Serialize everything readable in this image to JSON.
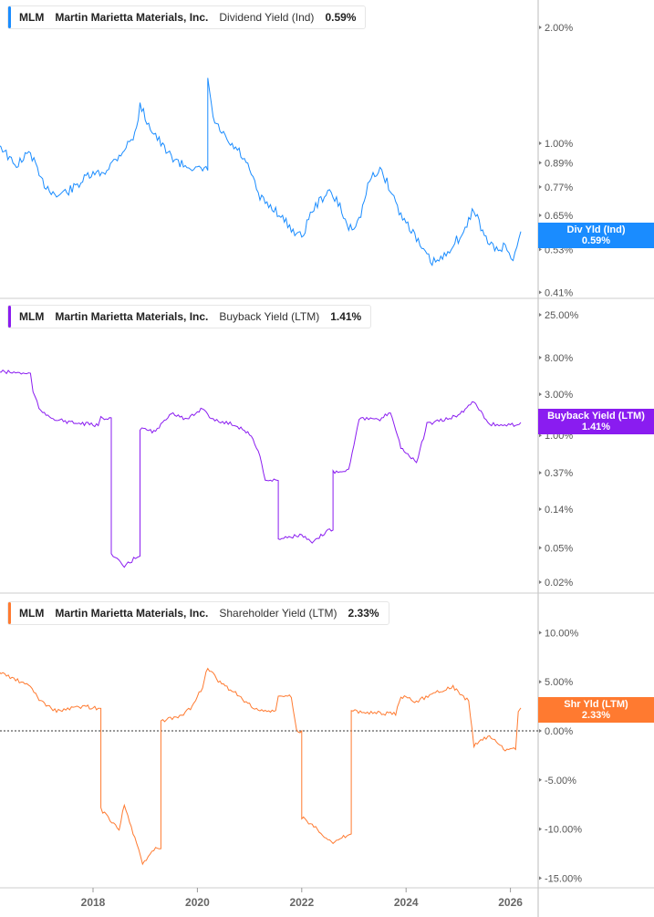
{
  "panels": [
    {
      "ticker": "MLM",
      "company": "Martin Marietta Materials, Inc.",
      "metric": "Dividend Yield (Ind)",
      "value": "0.59%",
      "badge_label": "Div Yld (Ind)",
      "color": "#1a8cff"
    },
    {
      "ticker": "MLM",
      "company": "Martin Marietta Materials, Inc.",
      "metric": "Buyback Yield (LTM)",
      "value": "1.41%",
      "badge_label": "Buyback Yield (LTM)",
      "color": "#8a1cf0"
    },
    {
      "ticker": "MLM",
      "company": "Martin Marietta Materials, Inc.",
      "metric": "Shareholder Yield (LTM)",
      "value": "2.33%",
      "badge_label": "Shr Yld (LTM)",
      "color": "#ff7a30"
    }
  ],
  "chart_data": [
    {
      "type": "line",
      "title": "Dividend Yield (Ind)",
      "yscale": "log",
      "ylim": [
        0.41,
        2.2
      ],
      "yticks": [
        "2.00%",
        "1.00%",
        "0.89%",
        "0.77%",
        "0.65%",
        "0.53%",
        "0.41%"
      ],
      "x": [
        2016.2,
        2016.5,
        2016.8,
        2017.0,
        2017.3,
        2017.6,
        2017.9,
        2018.2,
        2018.5,
        2018.8,
        2018.9,
        2019.1,
        2019.4,
        2019.7,
        2019.9,
        2020.0,
        2020.2,
        2020.3,
        2020.6,
        2020.8,
        2021.0,
        2021.2,
        2021.5,
        2021.8,
        2022.0,
        2022.2,
        2022.5,
        2022.7,
        2022.9,
        2023.1,
        2023.3,
        2023.5,
        2023.7,
        2023.9,
        2024.1,
        2024.3,
        2024.5,
        2024.7,
        2024.9,
        2025.1,
        2025.3,
        2025.5,
        2025.7,
        2025.9,
        2026.05,
        2026.2
      ],
      "y": [
        1.0,
        0.87,
        0.95,
        0.8,
        0.73,
        0.76,
        0.82,
        0.84,
        0.93,
        1.05,
        1.25,
        1.1,
        0.95,
        0.88,
        0.87,
        0.85,
        1.5,
        1.15,
        1.0,
        0.95,
        0.85,
        0.72,
        0.67,
        0.6,
        0.57,
        0.67,
        0.75,
        0.7,
        0.6,
        0.63,
        0.8,
        0.86,
        0.76,
        0.65,
        0.6,
        0.53,
        0.49,
        0.5,
        0.55,
        0.58,
        0.68,
        0.57,
        0.53,
        0.54,
        0.5,
        0.59
      ]
    },
    {
      "type": "line",
      "title": "Buyback Yield (LTM)",
      "yscale": "log",
      "ylim": [
        0.018,
        28
      ],
      "yticks": [
        "25.00%",
        "8.00%",
        "3.00%",
        "1.00%",
        "0.37%",
        "0.14%",
        "0.05%",
        "0.02%"
      ],
      "x": [
        2016.2,
        2016.8,
        2016.85,
        2017.0,
        2017.3,
        2017.6,
        2017.9,
        2018.1,
        2018.15,
        2018.35,
        2018.6,
        2018.85,
        2018.9,
        2019.2,
        2019.5,
        2019.8,
        2020.1,
        2020.3,
        2020.7,
        2021.0,
        2021.2,
        2021.3,
        2021.5,
        2021.55,
        2022.0,
        2022.2,
        2022.5,
        2022.6,
        2022.9,
        2023.1,
        2023.5,
        2023.7,
        2023.9,
        2024.2,
        2024.4,
        2024.7,
        2025.0,
        2025.3,
        2025.6,
        2026.0,
        2026.2
      ],
      "y": [
        5.5,
        5.2,
        3.2,
        1.86,
        1.53,
        1.4,
        1.35,
        1.3,
        1.6,
        0.042,
        0.03,
        0.04,
        1.2,
        1.1,
        1.86,
        1.5,
        2.1,
        1.5,
        1.35,
        1.05,
        0.6,
        0.3,
        0.3,
        0.064,
        0.07,
        0.056,
        0.08,
        0.38,
        0.4,
        1.6,
        1.5,
        1.9,
        0.73,
        0.48,
        1.35,
        1.5,
        1.7,
        2.5,
        1.35,
        1.3,
        1.41
      ]
    },
    {
      "type": "line",
      "title": "Shareholder Yield (LTM)",
      "yscale": "linear",
      "ylim": [
        -15.5,
        11
      ],
      "yticks": [
        "10.00%",
        "5.00%",
        "0.00%",
        "-5.00%",
        "-10.00%",
        "-15.00%"
      ],
      "x": [
        2016.2,
        2016.8,
        2017.0,
        2017.3,
        2017.8,
        2018.1,
        2018.15,
        2018.5,
        2018.6,
        2018.8,
        2018.95,
        2019.2,
        2019.3,
        2019.7,
        2019.9,
        2020.1,
        2020.2,
        2020.4,
        2020.7,
        2020.9,
        2021.2,
        2021.5,
        2021.55,
        2021.8,
        2021.9,
        2022.0,
        2022.3,
        2022.6,
        2022.9,
        2022.95,
        2023.5,
        2023.8,
        2023.9,
        2024.2,
        2024.6,
        2024.9,
        2025.2,
        2025.3,
        2025.6,
        2025.8,
        2025.9,
        2026.1,
        2026.15,
        2026.2
      ],
      "y": [
        6.0,
        4.5,
        3.0,
        2.0,
        2.5,
        2.3,
        -8.0,
        -10,
        -7.5,
        -11,
        -13.5,
        -12,
        1.0,
        1.5,
        2.5,
        4.5,
        6.5,
        5.0,
        4.0,
        3.0,
        2.0,
        2.0,
        3.5,
        3.5,
        0.0,
        -8.8,
        -10,
        -11.5,
        -10.5,
        2.0,
        1.8,
        1.7,
        3.5,
        3.0,
        4.0,
        4.5,
        3.0,
        -1.5,
        -0.5,
        -1.5,
        -2.0,
        -1.8,
        2.0,
        2.33
      ]
    }
  ],
  "xaxis": {
    "ticks": [
      "2018",
      "2020",
      "2022",
      "2024",
      "2026"
    ]
  }
}
